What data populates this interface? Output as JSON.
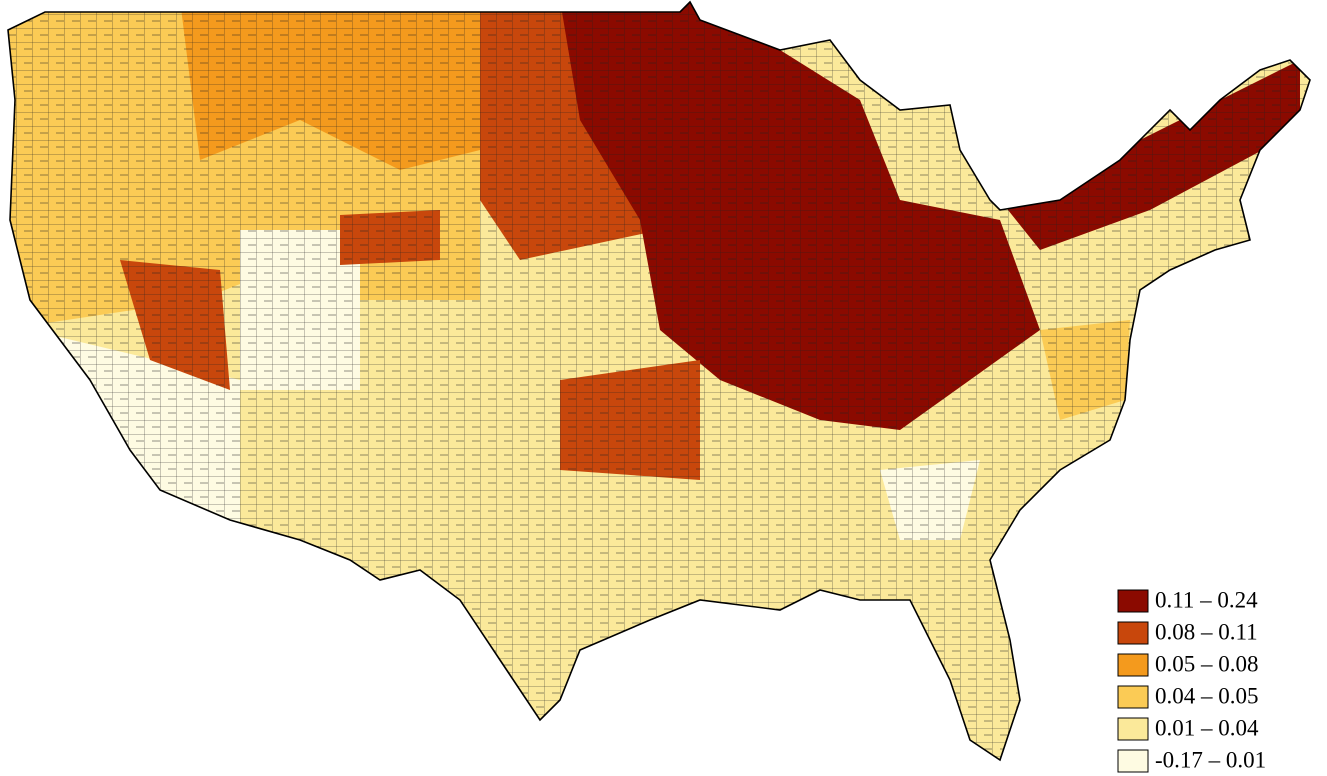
{
  "legend": {
    "items": [
      {
        "label": "0.11 – 0.24",
        "color": "#8b0a00"
      },
      {
        "label": "0.08 – 0.11",
        "color": "#c8470c"
      },
      {
        "label": "0.05 – 0.08",
        "color": "#f49a1d"
      },
      {
        "label": "0.04 – 0.05",
        "color": "#fbcb55"
      },
      {
        "label": "0.01 – 0.04",
        "color": "#fbe99a"
      },
      {
        "label": "-0.17 – 0.01",
        "color": "#fefbe2"
      }
    ]
  }
}
